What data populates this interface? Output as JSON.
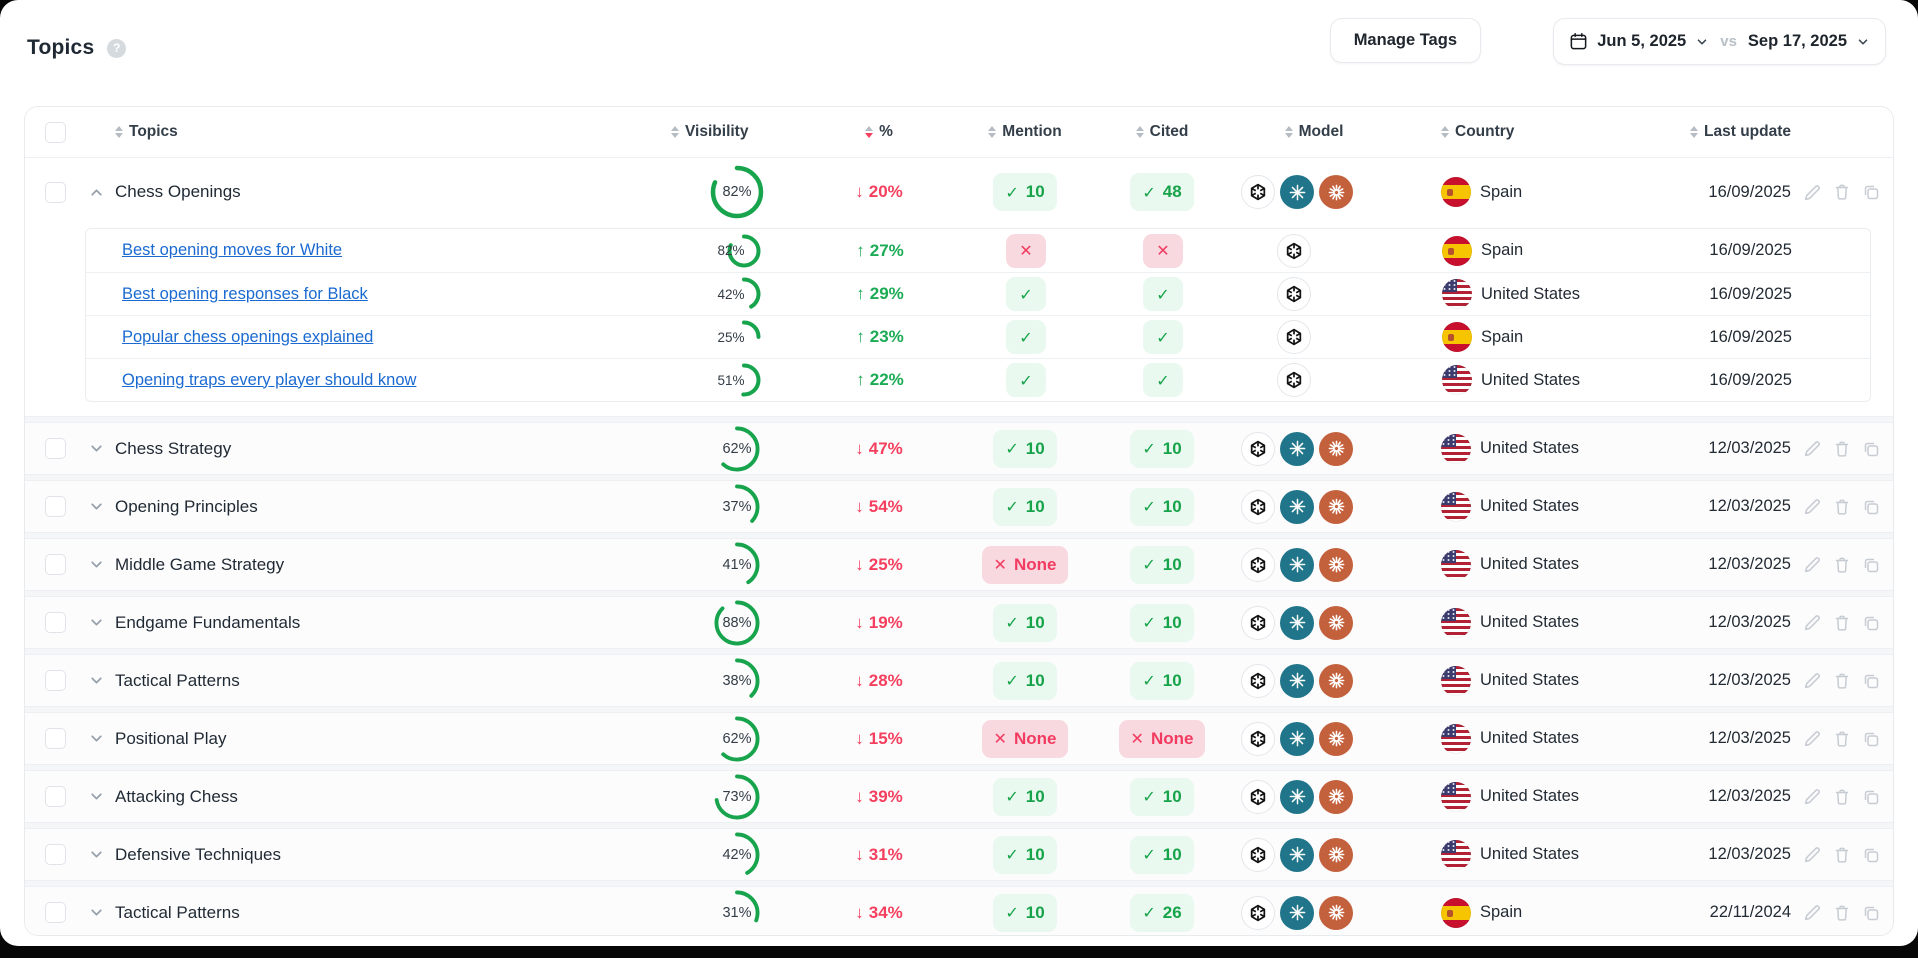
{
  "page": {
    "title": "Topics",
    "help_glyph": "?"
  },
  "toolbar": {
    "manage_tags_label": "Manage Tags",
    "date_from": "Jun 5, 2025",
    "date_vs": "vs",
    "date_to": "Sep 17, 2025"
  },
  "colors": {
    "green": "#17a44d",
    "red": "#f43f5e",
    "link_blue": "#1b6ad1",
    "perplexity_teal": "#20758a",
    "claude_orange": "#c4613d"
  },
  "table": {
    "columns": [
      {
        "key": "topic",
        "label": "Topics",
        "sort": "none"
      },
      {
        "key": "visibility",
        "label": "Visibility",
        "sort": "none"
      },
      {
        "key": "pct",
        "label": "%",
        "sort": "desc"
      },
      {
        "key": "mention",
        "label": "Mention",
        "sort": "none"
      },
      {
        "key": "cited",
        "label": "Cited",
        "sort": "none"
      },
      {
        "key": "model",
        "label": "Model",
        "sort": "none"
      },
      {
        "key": "country",
        "label": "Country",
        "sort": "none"
      },
      {
        "key": "update",
        "label": "Last update",
        "sort": "none"
      }
    ],
    "rows": [
      {
        "topic": "Chess Openings",
        "expanded": true,
        "visibility": 82,
        "change": {
          "dir": "down",
          "value": "20%"
        },
        "mention": {
          "state": "ok",
          "label": "10"
        },
        "cited": {
          "state": "ok",
          "label": "48"
        },
        "models": [
          "openai",
          "perplexity",
          "claude"
        ],
        "country": {
          "flag": "es",
          "name": "Spain"
        },
        "last_update": "16/09/2025",
        "children": [
          {
            "prompt": "Best opening moves for White",
            "visibility": 82,
            "change": {
              "dir": "up",
              "value": "27%"
            },
            "mention": {
              "state": "fail",
              "label": ""
            },
            "cited": {
              "state": "fail",
              "label": ""
            },
            "models": [
              "openai"
            ],
            "country": {
              "flag": "es",
              "name": "Spain"
            },
            "last_update": "16/09/2025"
          },
          {
            "prompt": "Best opening responses for Black",
            "visibility": 42,
            "change": {
              "dir": "up",
              "value": "29%"
            },
            "mention": {
              "state": "ok",
              "label": ""
            },
            "cited": {
              "state": "ok",
              "label": ""
            },
            "models": [
              "openai"
            ],
            "country": {
              "flag": "us",
              "name": "United States"
            },
            "last_update": "16/09/2025"
          },
          {
            "prompt": "Popular chess openings explained",
            "visibility": 25,
            "change": {
              "dir": "up",
              "value": "23%"
            },
            "mention": {
              "state": "ok",
              "label": ""
            },
            "cited": {
              "state": "ok",
              "label": ""
            },
            "models": [
              "openai"
            ],
            "country": {
              "flag": "es",
              "name": "Spain"
            },
            "last_update": "16/09/2025"
          },
          {
            "prompt": "Opening traps every player should know",
            "visibility": 51,
            "change": {
              "dir": "up",
              "value": "22%"
            },
            "mention": {
              "state": "ok",
              "label": ""
            },
            "cited": {
              "state": "ok",
              "label": ""
            },
            "models": [
              "openai"
            ],
            "country": {
              "flag": "us",
              "name": "United States"
            },
            "last_update": "16/09/2025"
          }
        ]
      },
      {
        "topic": "Chess Strategy",
        "expanded": false,
        "visibility": 62,
        "change": {
          "dir": "down",
          "value": "47%"
        },
        "mention": {
          "state": "ok",
          "label": "10"
        },
        "cited": {
          "state": "ok",
          "label": "10"
        },
        "models": [
          "openai",
          "perplexity",
          "claude"
        ],
        "country": {
          "flag": "us",
          "name": "United States"
        },
        "last_update": "12/03/2025",
        "children": []
      },
      {
        "topic": "Opening Principles",
        "expanded": false,
        "visibility": 37,
        "change": {
          "dir": "down",
          "value": "54%"
        },
        "mention": {
          "state": "ok",
          "label": "10"
        },
        "cited": {
          "state": "ok",
          "label": "10"
        },
        "models": [
          "openai",
          "perplexity",
          "claude"
        ],
        "country": {
          "flag": "us",
          "name": "United States"
        },
        "last_update": "12/03/2025",
        "children": []
      },
      {
        "topic": "Middle Game Strategy",
        "expanded": false,
        "visibility": 41,
        "change": {
          "dir": "down",
          "value": "25%"
        },
        "mention": {
          "state": "fail",
          "label": "None"
        },
        "cited": {
          "state": "ok",
          "label": "10"
        },
        "models": [
          "openai",
          "perplexity",
          "claude"
        ],
        "country": {
          "flag": "us",
          "name": "United States"
        },
        "last_update": "12/03/2025",
        "children": []
      },
      {
        "topic": "Endgame Fundamentals",
        "expanded": false,
        "visibility": 88,
        "change": {
          "dir": "down",
          "value": "19%"
        },
        "mention": {
          "state": "ok",
          "label": "10"
        },
        "cited": {
          "state": "ok",
          "label": "10"
        },
        "models": [
          "openai",
          "perplexity",
          "claude"
        ],
        "country": {
          "flag": "us",
          "name": "United States"
        },
        "last_update": "12/03/2025",
        "children": []
      },
      {
        "topic": "Tactical Patterns",
        "expanded": false,
        "visibility": 38,
        "change": {
          "dir": "down",
          "value": "28%"
        },
        "mention": {
          "state": "ok",
          "label": "10"
        },
        "cited": {
          "state": "ok",
          "label": "10"
        },
        "models": [
          "openai",
          "perplexity",
          "claude"
        ],
        "country": {
          "flag": "us",
          "name": "United States"
        },
        "last_update": "12/03/2025",
        "children": []
      },
      {
        "topic": "Positional Play",
        "expanded": false,
        "visibility": 62,
        "change": {
          "dir": "down",
          "value": "15%"
        },
        "mention": {
          "state": "fail",
          "label": "None"
        },
        "cited": {
          "state": "fail",
          "label": "None"
        },
        "models": [
          "openai",
          "perplexity",
          "claude"
        ],
        "country": {
          "flag": "us",
          "name": "United States"
        },
        "last_update": "12/03/2025",
        "children": []
      },
      {
        "topic": "Attacking Chess",
        "expanded": false,
        "visibility": 73,
        "change": {
          "dir": "down",
          "value": "39%"
        },
        "mention": {
          "state": "ok",
          "label": "10"
        },
        "cited": {
          "state": "ok",
          "label": "10"
        },
        "models": [
          "openai",
          "perplexity",
          "claude"
        ],
        "country": {
          "flag": "us",
          "name": "United States"
        },
        "last_update": "12/03/2025",
        "children": []
      },
      {
        "topic": "Defensive Techniques",
        "expanded": false,
        "visibility": 42,
        "change": {
          "dir": "down",
          "value": "31%"
        },
        "mention": {
          "state": "ok",
          "label": "10"
        },
        "cited": {
          "state": "ok",
          "label": "10"
        },
        "models": [
          "openai",
          "perplexity",
          "claude"
        ],
        "country": {
          "flag": "us",
          "name": "United States"
        },
        "last_update": "12/03/2025",
        "children": []
      },
      {
        "topic": "Tactical Patterns",
        "expanded": false,
        "visibility": 31,
        "change": {
          "dir": "down",
          "value": "34%"
        },
        "mention": {
          "state": "ok",
          "label": "10"
        },
        "cited": {
          "state": "ok",
          "label": "26"
        },
        "models": [
          "openai",
          "perplexity",
          "claude"
        ],
        "country": {
          "flag": "es",
          "name": "Spain"
        },
        "last_update": "22/11/2024",
        "children": []
      }
    ]
  }
}
